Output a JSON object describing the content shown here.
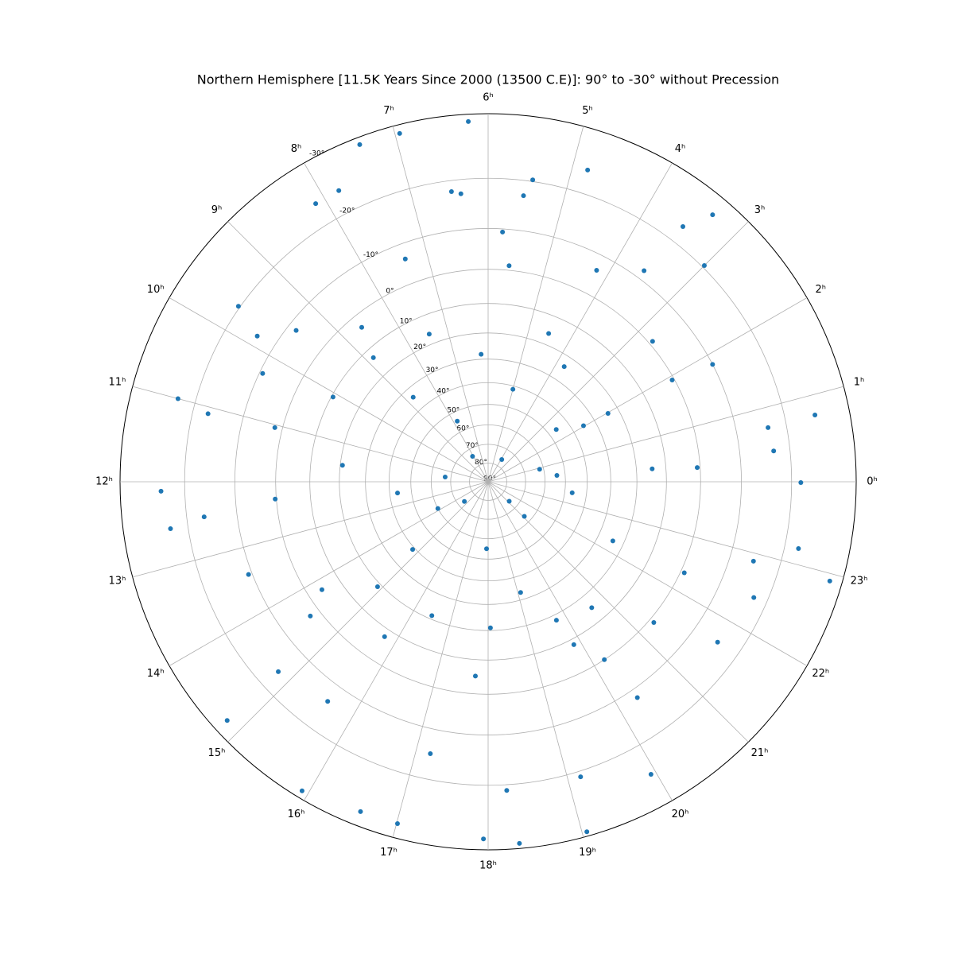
{
  "chart_data": {
    "type": "polar-scatter",
    "title": "Northern Hemisphere [11.5K Years Since 2000 (13500 C.E)]: 90° to -30° without Precession",
    "radial_projection": "stereographic",
    "direction": "counterclockwise",
    "grid": true,
    "color": "#1f77b4",
    "xlim": [
      0,
      24
    ],
    "xticks": [
      {
        "value": 0,
        "label": "0ʰ"
      },
      {
        "value": 1,
        "label": "1ʰ"
      },
      {
        "value": 2,
        "label": "2ʰ"
      },
      {
        "value": 3,
        "label": "3ʰ"
      },
      {
        "value": 4,
        "label": "4ʰ"
      },
      {
        "value": 5,
        "label": "5ʰ"
      },
      {
        "value": 6,
        "label": "6ʰ"
      },
      {
        "value": 7,
        "label": "7ʰ"
      },
      {
        "value": 8,
        "label": "8ʰ"
      },
      {
        "value": 9,
        "label": "9ʰ"
      },
      {
        "value": 10,
        "label": "10ʰ"
      },
      {
        "value": 11,
        "label": "11ʰ"
      },
      {
        "value": 12,
        "label": "12ʰ"
      },
      {
        "value": 13,
        "label": "13ʰ"
      },
      {
        "value": 14,
        "label": "14ʰ"
      },
      {
        "value": 15,
        "label": "15ʰ"
      },
      {
        "value": 16,
        "label": "16ʰ"
      },
      {
        "value": 17,
        "label": "17ʰ"
      },
      {
        "value": 18,
        "label": "18ʰ"
      },
      {
        "value": 19,
        "label": "19ʰ"
      },
      {
        "value": 20,
        "label": "20ʰ"
      },
      {
        "value": 21,
        "label": "21ʰ"
      },
      {
        "value": 22,
        "label": "22ʰ"
      },
      {
        "value": 23,
        "label": "23ʰ"
      }
    ],
    "ylim": [
      90,
      -30
    ],
    "yticks": [
      {
        "value": 90,
        "label": "90°"
      },
      {
        "value": 80,
        "label": "80°"
      },
      {
        "value": 70,
        "label": "70°"
      },
      {
        "value": 60,
        "label": "60°"
      },
      {
        "value": 50,
        "label": "50°"
      },
      {
        "value": 40,
        "label": "40°"
      },
      {
        "value": 30,
        "label": "30°"
      },
      {
        "value": 20,
        "label": "20°"
      },
      {
        "value": 10,
        "label": "10°"
      },
      {
        "value": 0,
        "label": "0°"
      },
      {
        "value": -10,
        "label": "-10°"
      },
      {
        "value": -20,
        "label": "-20°"
      },
      {
        "value": -30,
        "label": "-30°"
      }
    ],
    "x": [
      6.21,
      6.95,
      7.39,
      8.12,
      9.66,
      11.0,
      12.11,
      12.56,
      14.83,
      15.93,
      16.59,
      17.01,
      17.95,
      18.33,
      19.05,
      19.94,
      21.67,
      22.92,
      23.19,
      23.99,
      0.77,
      0.41,
      1.84,
      3.33,
      3.51,
      4.82,
      5.44,
      6.48,
      5.78,
      3.77,
      4.52,
      5.0,
      7.8,
      8.77,
      8.85,
      10.09,
      10.29,
      12.31,
      11.57,
      12.47,
      13.87,
      14.79,
      14.9,
      14.2,
      14.47,
      15.75,
      16.48,
      17.75,
      18.06,
      17.91,
      19.09,
      19.75,
      19.85,
      20.63,
      20.21,
      20.31,
      21.31,
      22.34,
      22.31,
      23.5,
      0.91,
      2.5,
      1.98,
      0.3,
      0.26,
      1.93,
      2.7,
      4.19,
      5.63,
      6.21,
      7.45,
      7.36,
      8.62,
      9.45,
      11.09,
      12.47,
      13.41,
      14.81,
      15.59,
      17.2,
      18.23,
      19.16,
      22.43,
      22.89,
      0.73,
      3.0,
      3.57,
      5.53,
      6.36,
      7.81,
      9.85,
      11.05,
      14.64,
      21.15,
      3.9,
      21.09,
      8.1,
      11.58,
      0.35,
      2.03
    ],
    "values": [
      -29,
      -28.8,
      -29,
      -24,
      -20.3,
      -23,
      -24,
      -23,
      -28,
      -29,
      -28,
      -28,
      -28.5,
      -29.3,
      -29.4,
      -25.2,
      -15.6,
      -28.3,
      -22.4,
      -21.6,
      -25,
      -17,
      -10,
      -27.3,
      -23,
      -24,
      -20.3,
      -18,
      -9.3,
      24,
      16,
      41.5,
      54.5,
      34,
      13,
      10.5,
      -9.3,
      -0.3,
      20.8,
      43.5,
      60,
      39,
      18.7,
      4,
      -2.7,
      7.5,
      21.3,
      5,
      21,
      55,
      33,
      18,
      8.2,
      15,
      0,
      -12,
      -1.3,
      -1,
      24,
      46.5,
      62,
      46,
      24,
      14.5,
      0.8,
      0.6,
      -1,
      -6.4,
      -1.2,
      28,
      16.4,
      -6.4,
      3.6,
      -8,
      -17.2,
      -16.8,
      -10.8,
      -16.2,
      -14,
      -15.2,
      -21,
      -21,
      -17.5,
      -15,
      -16.6,
      -20.4,
      -12,
      -17.2,
      -17.4,
      -24,
      -14.2,
      -2,
      73.5,
      74.6,
      76,
      63.5,
      74,
      67,
      54,
      35
    ]
  }
}
